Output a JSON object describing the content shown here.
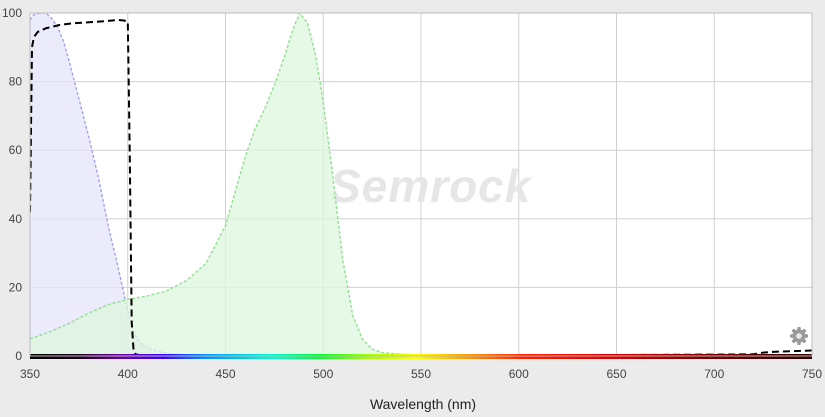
{
  "watermark": "Semrock",
  "chart_data": {
    "type": "area",
    "xlabel": "Wavelength (nm)",
    "ylabel": "",
    "xlim": [
      350,
      750
    ],
    "ylim": [
      0,
      100
    ],
    "x_ticks": [
      350,
      400,
      450,
      500,
      550,
      600,
      650,
      700,
      750
    ],
    "y_ticks": [
      0,
      20,
      40,
      60,
      80,
      100
    ],
    "grid": true,
    "legend": "none",
    "colors": {
      "excitation_fill": "#e4e4fb",
      "excitation_line": "#a0a0f0",
      "emission_fill": "#ddf6dd",
      "emission_line": "#8fe08f",
      "filter_line": "#000000",
      "plot_background": "#ffffff",
      "grid": "#d0d0d0"
    },
    "series": [
      {
        "role": "excitation",
        "style": "filled dotted",
        "x": [
          350,
          352,
          355,
          358,
          361,
          364,
          367,
          370,
          375,
          380,
          385,
          390,
          395,
          400,
          403,
          406,
          410,
          415,
          420,
          430,
          750
        ],
        "y": [
          98,
          99.5,
          100,
          100,
          98.5,
          96,
          92,
          86,
          75,
          64,
          52,
          38,
          26,
          13,
          7,
          4,
          2.5,
          1.5,
          0.8,
          0.3,
          0
        ]
      },
      {
        "role": "emission",
        "style": "filled dotted",
        "x": [
          350,
          360,
          370,
          380,
          390,
          400,
          410,
          420,
          430,
          440,
          450,
          455,
          460,
          465,
          470,
          475,
          480,
          485,
          488,
          492,
          496,
          500,
          505,
          510,
          515,
          520,
          525,
          530,
          540,
          560,
          750
        ],
        "y": [
          5,
          7,
          9.5,
          12.5,
          15,
          16.5,
          17.5,
          19,
          22,
          27,
          38,
          48,
          58,
          66,
          72,
          79,
          87,
          96,
          100,
          97,
          88,
          74,
          52,
          28,
          12,
          5,
          2,
          1,
          0.5,
          0.3,
          0
        ]
      },
      {
        "role": "filter",
        "style": "dashed",
        "x": [
          350,
          351,
          352,
          354,
          358,
          365,
          372,
          380,
          388,
          395,
          398,
          400,
          401,
          402,
          403,
          404,
          406,
          410,
          450,
          550,
          650,
          700,
          720,
          725,
          730,
          740,
          750
        ],
        "y": [
          42,
          90,
          93,
          94.5,
          95.5,
          96.5,
          97,
          97.3,
          97.6,
          98,
          97.8,
          97.5,
          60,
          10,
          1.5,
          0.5,
          0.3,
          0.3,
          0.3,
          0.3,
          0.3,
          0.4,
          0.5,
          1,
          1.2,
          1.4,
          1.6
        ]
      }
    ]
  }
}
